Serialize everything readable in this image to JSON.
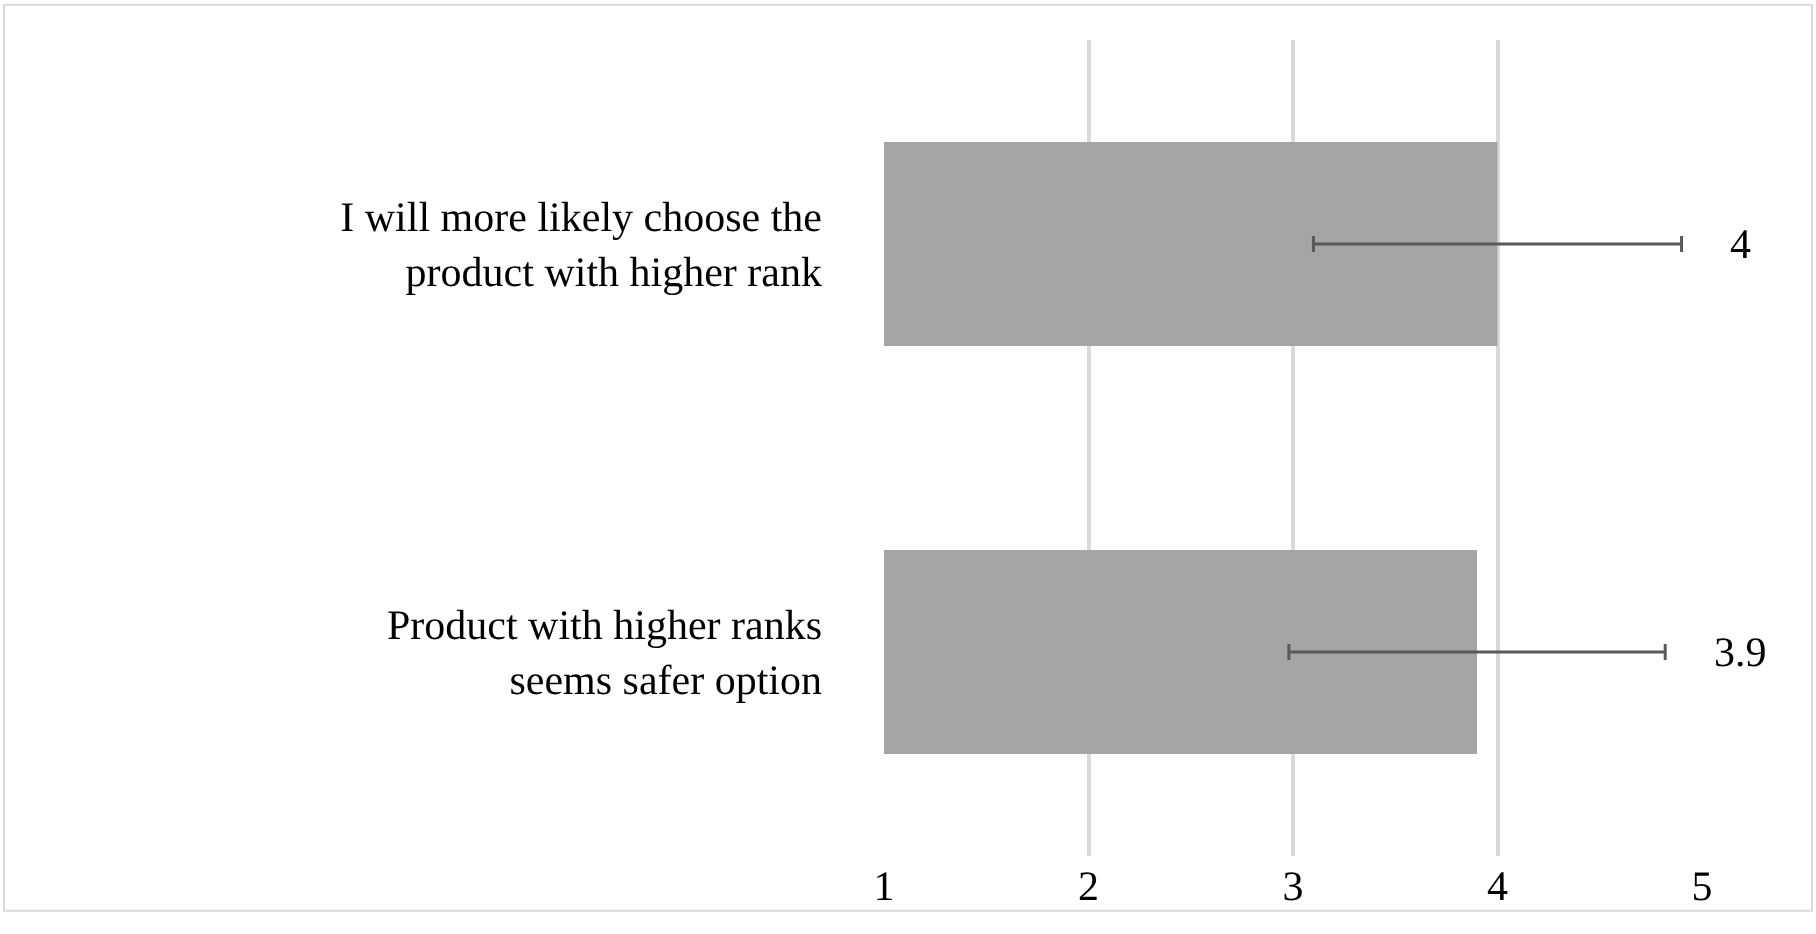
{
  "chart_data": {
    "type": "bar",
    "orientation": "horizontal",
    "categories": [
      "I will more likely choose the product with higher rank",
      "Product with higher ranks seems safer option"
    ],
    "values": [
      4,
      3.9
    ],
    "errors": [
      0.9,
      0.92
    ],
    "color": "#a5a5a5",
    "xlim": [
      1,
      5
    ],
    "xticks": [
      1,
      2,
      3,
      4,
      5
    ],
    "grid": "x",
    "data_labels": true
  }
}
